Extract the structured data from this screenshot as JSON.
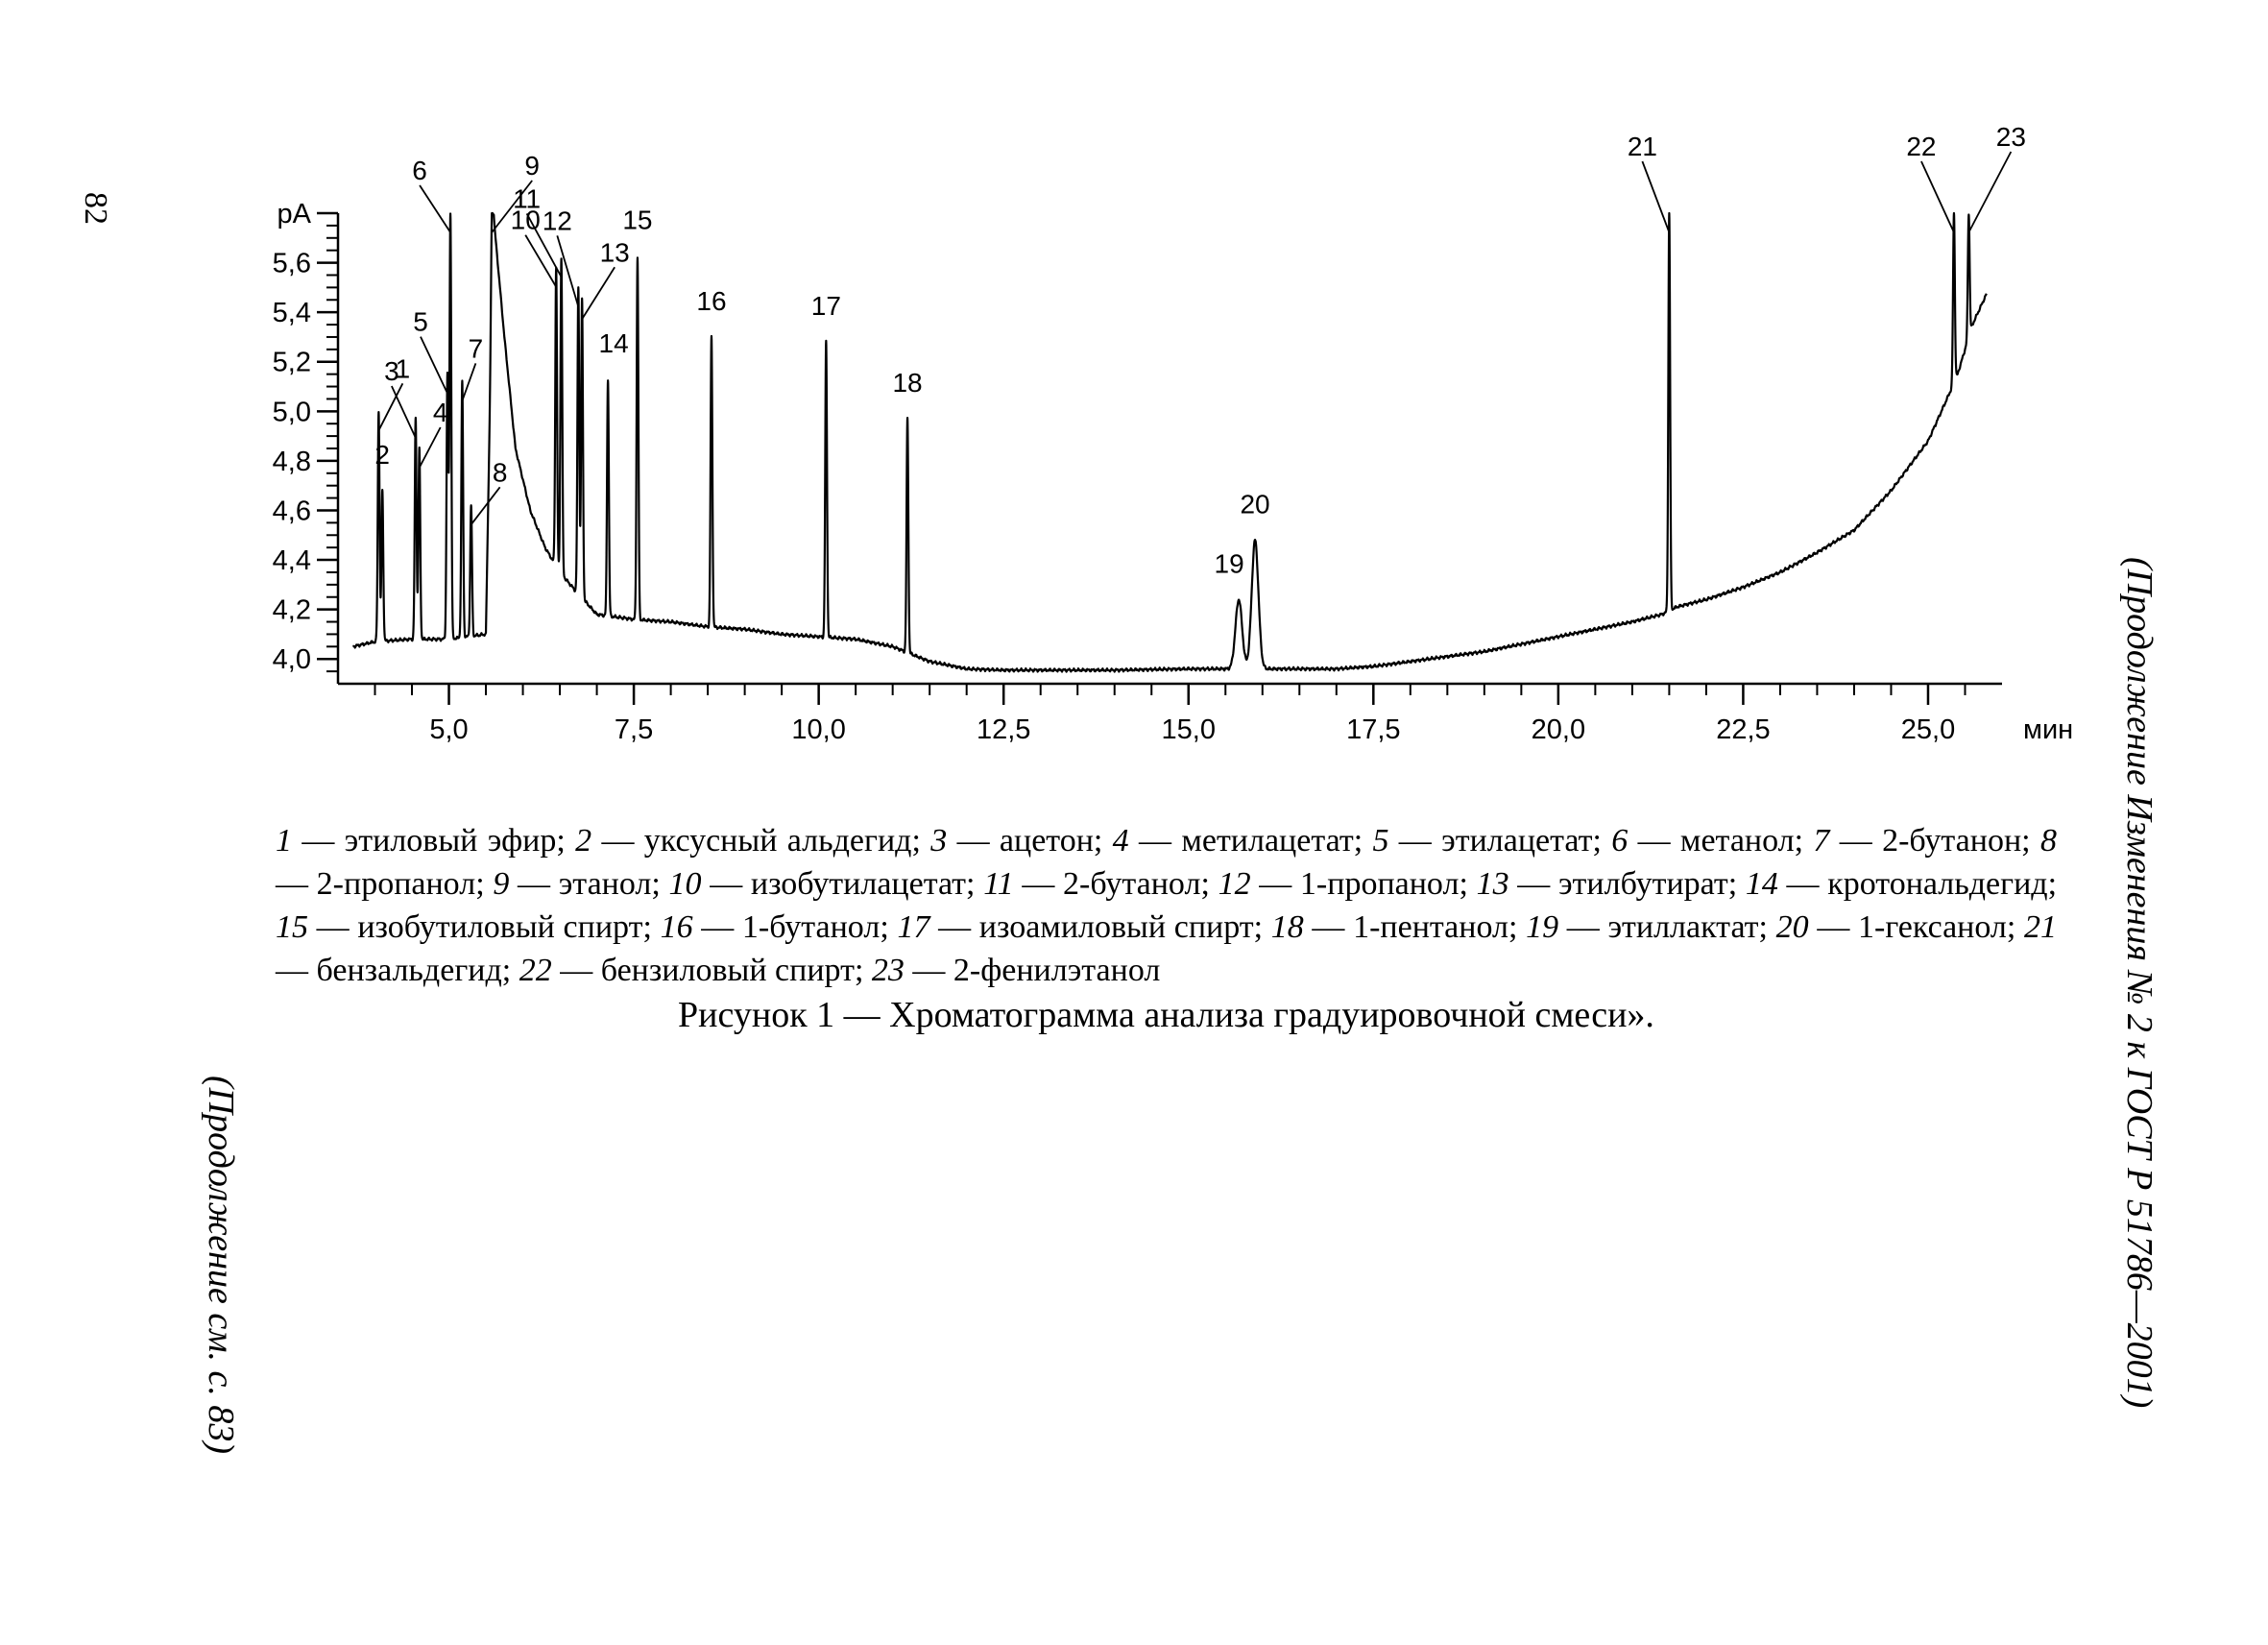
{
  "page": {
    "number": "82",
    "side_right": "(Продолжение Изменения № 2 к ГОСТ Р 51786—2001)",
    "side_left": "(Продолжение см. с. 83)"
  },
  "legend": [
    {
      "num": "1",
      "name": "этиловый эфир"
    },
    {
      "num": "2",
      "name": "уксусный альдегид"
    },
    {
      "num": "3",
      "name": "ацетон"
    },
    {
      "num": "4",
      "name": "метилацетат"
    },
    {
      "num": "5",
      "name": "этилацетат"
    },
    {
      "num": "6",
      "name": "метанол"
    },
    {
      "num": "7",
      "name": "2-бутанон"
    },
    {
      "num": "8",
      "name": "2-пропанол"
    },
    {
      "num": "9",
      "name": "этанол"
    },
    {
      "num": "10",
      "name": "изобутилацетат"
    },
    {
      "num": "11",
      "name": "2-бутанол"
    },
    {
      "num": "12",
      "name": "1-пропанол"
    },
    {
      "num": "13",
      "name": "этилбутират"
    },
    {
      "num": "14",
      "name": "кротональдегид"
    },
    {
      "num": "15",
      "name": "изобутиловый спирт"
    },
    {
      "num": "16",
      "name": "1-бутанол"
    },
    {
      "num": "17",
      "name": "изоамиловый спирт"
    },
    {
      "num": "18",
      "name": "1-пентанол"
    },
    {
      "num": "19",
      "name": "этиллактат"
    },
    {
      "num": "20",
      "name": "1-гексанол"
    },
    {
      "num": "21",
      "name": "бензальдегид"
    },
    {
      "num": "22",
      "name": "бензиловый спирт"
    },
    {
      "num": "23",
      "name": "2-фенилэтанол"
    }
  ],
  "caption": "Рисунок 1 — Хроматограмма анализа градуировочной смеси».",
  "chart_data": {
    "type": "line",
    "title": "",
    "xlabel": "мин",
    "ylabel": "pA",
    "xlim": [
      3.5,
      26.0
    ],
    "ylim": [
      3.9,
      5.8
    ],
    "x_ticks": [
      5.0,
      7.5,
      10.0,
      12.5,
      15.0,
      17.5,
      20.0,
      22.5,
      25.0
    ],
    "x_tick_labels": [
      "5,0",
      "7,5",
      "10,0",
      "12,5",
      "15,0",
      "17,5",
      "20,0",
      "22,5",
      "25,0"
    ],
    "y_ticks": [
      4.0,
      4.2,
      4.4,
      4.6,
      4.8,
      5.0,
      5.2,
      5.4,
      5.6
    ],
    "y_tick_labels": [
      "4,0",
      "4,2",
      "4,4",
      "4,6",
      "4,8",
      "5,0",
      "5,2",
      "5,4",
      "5,6"
    ],
    "baseline": {
      "x": [
        3.7,
        4.0,
        4.5,
        5.0,
        5.5,
        5.6,
        5.75,
        5.9,
        6.1,
        6.3,
        6.5,
        6.7,
        7.0,
        7.5,
        8.0,
        8.5,
        9.0,
        9.5,
        10.0,
        10.5,
        11.0,
        11.5,
        12.0,
        12.5,
        13.0,
        14.0,
        15.0,
        15.5,
        16.0,
        16.5,
        17.0,
        17.5,
        18.0,
        18.5,
        19.0,
        19.5,
        20.0,
        20.5,
        21.0,
        21.4,
        21.6,
        22.0,
        22.5,
        23.0,
        23.5,
        24.0,
        24.5,
        25.0,
        25.3,
        25.4,
        25.6,
        25.8
      ],
      "y": [
        4.05,
        4.07,
        4.08,
        4.08,
        4.1,
        5.8,
        5.3,
        4.85,
        4.6,
        4.45,
        4.35,
        4.28,
        4.18,
        4.16,
        4.15,
        4.13,
        4.12,
        4.1,
        4.09,
        4.08,
        4.05,
        3.99,
        3.96,
        3.955,
        3.955,
        3.955,
        3.96,
        3.96,
        3.96,
        3.96,
        3.96,
        3.97,
        3.99,
        4.01,
        4.03,
        4.06,
        4.09,
        4.12,
        4.15,
        4.18,
        4.21,
        4.24,
        4.29,
        4.35,
        4.43,
        4.52,
        4.68,
        4.88,
        5.08,
        5.15,
        5.35,
        5.48
      ]
    },
    "peaks": [
      {
        "label": "1",
        "x": 4.05,
        "height": 5.0
      },
      {
        "label": "2",
        "x": 4.1,
        "height": 4.68
      },
      {
        "label": "3",
        "x": 4.55,
        "height": 4.97
      },
      {
        "label": "4",
        "x": 4.6,
        "height": 4.85
      },
      {
        "label": "5",
        "x": 4.98,
        "height": 5.15
      },
      {
        "label": "6",
        "x": 5.02,
        "height": 5.8
      },
      {
        "label": "7",
        "x": 5.18,
        "height": 5.12
      },
      {
        "label": "8",
        "x": 5.3,
        "height": 4.62
      },
      {
        "label": "9",
        "x": 5.58,
        "height": 5.8
      },
      {
        "label": "10",
        "x": 6.45,
        "height": 5.58
      },
      {
        "label": "11",
        "x": 6.52,
        "height": 5.62
      },
      {
        "label": "12",
        "x": 6.75,
        "height": 5.5
      },
      {
        "label": "13",
        "x": 6.8,
        "height": 5.45
      },
      {
        "label": "14",
        "x": 7.15,
        "height": 5.13
      },
      {
        "label": "15",
        "x": 7.55,
        "height": 5.62
      },
      {
        "label": "16",
        "x": 8.55,
        "height": 5.3
      },
      {
        "label": "17",
        "x": 10.1,
        "height": 5.28
      },
      {
        "label": "18",
        "x": 11.2,
        "height": 4.97
      },
      {
        "label": "19",
        "x": 15.68,
        "height": 4.24
      },
      {
        "label": "20",
        "x": 15.9,
        "height": 4.48
      },
      {
        "label": "21",
        "x": 21.5,
        "height": 5.8
      },
      {
        "label": "22",
        "x": 25.35,
        "height": 5.8
      },
      {
        "label": "23",
        "x": 25.55,
        "height": 5.8
      }
    ],
    "grid": false,
    "legend_position": "below"
  }
}
